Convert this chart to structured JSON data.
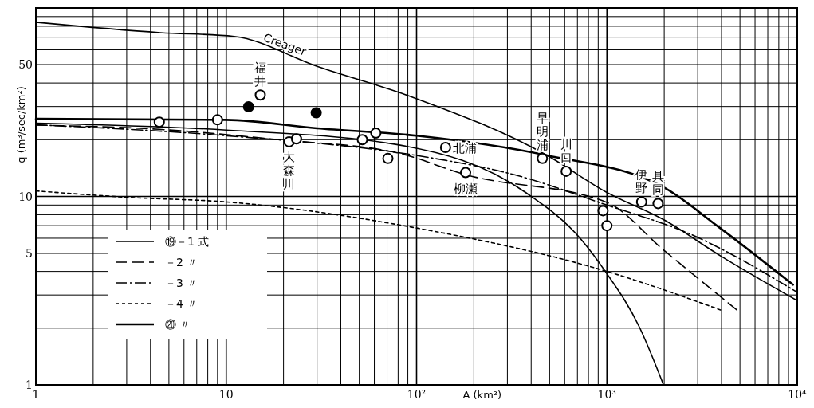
{
  "chart_data": {
    "type": "line",
    "xlabel": "A (km²)",
    "ylabel": "q (m³/sec/km²)",
    "log": "xy",
    "xlim": [
      1,
      10000
    ],
    "ylim": [
      1,
      100
    ],
    "xticks": [
      1,
      {
        "value": 2,
        "label": null
      },
      {
        "value": 3,
        "label": null
      },
      {
        "value": 4,
        "label": null
      },
      {
        "value": 5,
        "label": null
      },
      {
        "value": 6,
        "label": null
      },
      {
        "value": 7,
        "label": null
      },
      {
        "value": 8,
        "label": null
      },
      {
        "value": 9,
        "label": null
      },
      10,
      {
        "value": 20,
        "label": null
      },
      {
        "value": 30,
        "label": null
      },
      {
        "value": 40,
        "label": null
      },
      {
        "value": 50,
        "label": null
      },
      {
        "value": 60,
        "label": null
      },
      {
        "value": 70,
        "label": null
      },
      {
        "value": 80,
        "label": null
      },
      {
        "value": 90,
        "label": null
      },
      {
        "value": 100,
        "label": "10²"
      },
      {
        "value": 200,
        "label": null
      },
      {
        "value": 300,
        "label": null
      },
      {
        "value": 400,
        "label": null
      },
      {
        "value": 500,
        "label": null
      },
      {
        "value": 600,
        "label": null
      },
      {
        "value": 700,
        "label": null
      },
      {
        "value": 800,
        "label": null
      },
      {
        "value": 900,
        "label": null
      },
      {
        "value": 1000,
        "label": "10³"
      },
      {
        "value": 2000,
        "label": null
      },
      {
        "value": 3000,
        "label": null
      },
      {
        "value": 4000,
        "label": null
      },
      {
        "value": 5000,
        "label": null
      },
      {
        "value": 6000,
        "label": null
      },
      {
        "value": 7000,
        "label": null
      },
      {
        "value": 8000,
        "label": null
      },
      {
        "value": 9000,
        "label": null
      },
      {
        "value": 10000,
        "label": "10⁴"
      }
    ],
    "yticks": [
      1,
      {
        "value": 2,
        "label": null
      },
      {
        "value": 3,
        "label": null
      },
      {
        "value": 4,
        "label": null
      },
      5,
      {
        "value": 6,
        "label": null
      },
      {
        "value": 7,
        "label": null
      },
      {
        "value": 8,
        "label": null
      },
      {
        "value": 9,
        "label": null
      },
      10,
      {
        "value": 20,
        "label": null
      },
      {
        "value": 30,
        "label": null
      },
      {
        "value": 40,
        "label": null
      },
      50,
      {
        "value": 60,
        "label": null
      },
      {
        "value": 70,
        "label": null
      },
      {
        "value": 80,
        "label": null
      },
      {
        "value": 90,
        "label": null
      }
    ],
    "grid": true,
    "legend": "bottom left",
    "series": [
      {
        "name": "Creager",
        "color": "#000000",
        "line_style": "solid",
        "x": [
          1,
          4.5,
          11,
          30,
          97,
          485,
          1000,
          2000,
          4000,
          10000
        ],
        "values": [
          84,
          74,
          70.6,
          49,
          33.4,
          16.5,
          10.5,
          7.5,
          4.8,
          2.8
        ]
      },
      {
        "name": "⑲－1 式",
        "color": "#000000",
        "line_style": "solid",
        "x": [
          1,
          10,
          80,
          374,
          734,
          981,
          1480,
          1983
        ],
        "values": [
          24.5,
          22.5,
          18.8,
          10.5,
          5.9,
          4,
          2.03,
          1
        ]
      },
      {
        "name": "－2 〃",
        "color": "#000000",
        "line_style": "dashed",
        "x": [
          1,
          4.45,
          18.9,
          80,
          178,
          1000,
          1983,
          5060
        ],
        "values": [
          23.9,
          22.7,
          20,
          17,
          13.1,
          9.3,
          5.2,
          2.4
        ]
      },
      {
        "name": "－3 〃",
        "color": "#000000",
        "line_style": "dashdot",
        "x": [
          1,
          10,
          100,
          330,
          1000,
          2752,
          10000
        ],
        "values": [
          24,
          21,
          16.5,
          13,
          9,
          6.3,
          3.1
        ]
      },
      {
        "name": "－4 〃",
        "color": "#000000",
        "line_style": "dotted",
        "x": [
          1,
          3,
          10,
          100,
          1000,
          3950
        ],
        "values": [
          10.7,
          9.9,
          9.35,
          6.8,
          4,
          2.5
        ]
      },
      {
        "name": "⑳ 〃",
        "color": "#000000",
        "line_style": "solid",
        "x": [
          1,
          10,
          30,
          100,
          485,
          1983,
          3856,
          9500
        ],
        "values": [
          25.8,
          25.5,
          23,
          21,
          16.5,
          11.2,
          6.9,
          3.4
        ]
      },
      {
        "type": "scatter",
        "marker": "circle",
        "color": "#ffffff",
        "x": [
          4.45,
          9,
          15.1,
          21.4,
          23.4,
          51.9,
          61.1,
          70.7,
          142,
          181,
          458,
          611,
          1522,
          1856,
          954,
          1000
        ],
        "values": [
          24.8,
          25.5,
          34.5,
          19.5,
          20.2,
          20,
          21.7,
          15.9,
          18.2,
          13.4,
          15.9,
          13.6,
          9.35,
          9.17,
          8.4,
          7
        ]
      },
      {
        "type": "scatter",
        "marker": "circle",
        "color": "#000000",
        "x": [
          13.1,
          29.7
        ],
        "values": [
          29.9,
          27.8
        ]
      }
    ],
    "annotations": [
      {
        "text": "福井",
        "x": 15.1,
        "y": 34.5
      },
      {
        "text": "大森川",
        "x": 21.4,
        "y": 19.5
      },
      {
        "text": "北浦",
        "x": 142,
        "y": 18.2
      },
      {
        "text": "柳瀬",
        "x": 181,
        "y": 13.4
      },
      {
        "text": "早明浦",
        "x": 458,
        "y": 15.9
      },
      {
        "text": "川口",
        "x": 611,
        "y": 13.6
      },
      {
        "text": "伊野",
        "x": 1522,
        "y": 9.35
      },
      {
        "text": "具同",
        "x": 1856,
        "y": 9.17
      }
    ]
  }
}
